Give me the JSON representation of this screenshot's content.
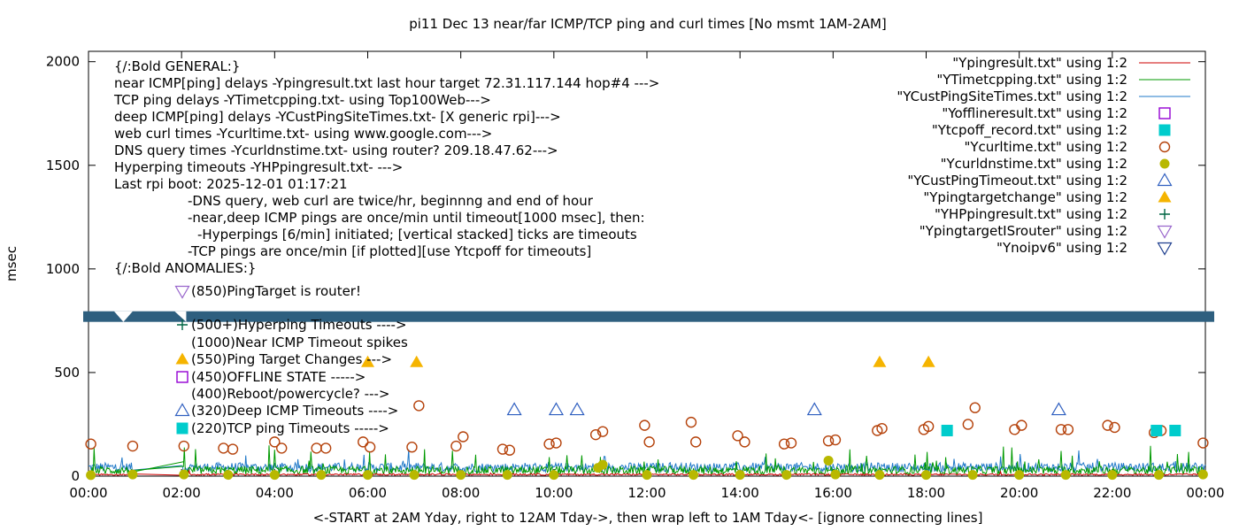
{
  "chart_data": {
    "type": "scatter",
    "title": "pi11 Dec 13  near/far ICMP/TCP ping and curl times [No msmt 1AM-2AM]",
    "xlabel": "<-START at 2AM Yday, right to 12AM Tday->, then wrap left to 1AM Tday<- [ignore connecting lines]",
    "ylabel": "msec",
    "xlim": [
      0,
      24
    ],
    "ylim": [
      0,
      2050
    ],
    "x_ticks": [
      "00:00",
      "02:00",
      "04:00",
      "06:00",
      "08:00",
      "10:00",
      "12:00",
      "14:00",
      "16:00",
      "18:00",
      "20:00",
      "22:00",
      "00:00"
    ],
    "y_ticks": [
      "0",
      "500",
      "1000",
      "1500",
      "2000"
    ],
    "y_tick_values": [
      0,
      500,
      1000,
      1500,
      2000
    ],
    "legend_position": "top-right",
    "legend": [
      {
        "label": "\"Ypingresult.txt\" using 1:2",
        "marker": "line",
        "color": "#cc0000"
      },
      {
        "label": "\"YTimetcpping.txt\" using 1:2",
        "marker": "line",
        "color": "#009900"
      },
      {
        "label": "\"YCustPingSiteTimes.txt\" using 1:2",
        "marker": "line",
        "color": "#1f78c8"
      },
      {
        "label": "\"Yofflineresult.txt\" using 1:2",
        "marker": "open-square",
        "color": "#9400d3"
      },
      {
        "label": "\"Ytcpoff_record.txt\" using 1:2",
        "marker": "filled-square",
        "color": "#00cccc"
      },
      {
        "label": "\"Ycurltime.txt\" using 1:2",
        "marker": "open-circle",
        "color": "#b5420b"
      },
      {
        "label": "\"Ycurldnstime.txt\" using 1:2",
        "marker": "filled-circle",
        "color": "#b8b800"
      },
      {
        "label": "\"YCustPingTimeout.txt\" using 1:2",
        "marker": "open-triangle",
        "color": "#2f5fc0"
      },
      {
        "label": "\"Ypingtargetchange\" using 1:2",
        "marker": "filled-triangle",
        "color": "#f5b400"
      },
      {
        "label": "\"YHPpingresult.txt\" using 1:2",
        "marker": "plus",
        "color": "#006644"
      },
      {
        "label": "\"YpingtargetISrouter\" using 1:2",
        "marker": "open-down-triangle",
        "color": "#9966cc"
      },
      {
        "label": "\"Ynoipv6\" using 1:2",
        "marker": "open-down-triangle",
        "color": "#1f3f8f"
      }
    ],
    "series": [
      {
        "name": "\"Ycurltime.txt\" using 1:2",
        "marker": "open-circle",
        "color": "#b5420b",
        "points": [
          [
            0.05,
            155
          ],
          [
            0.95,
            145
          ],
          [
            2.05,
            145
          ],
          [
            2.9,
            135
          ],
          [
            3.1,
            130
          ],
          [
            4.0,
            165
          ],
          [
            4.15,
            135
          ],
          [
            4.9,
            135
          ],
          [
            5.1,
            135
          ],
          [
            5.9,
            165
          ],
          [
            6.05,
            140
          ],
          [
            6.95,
            140
          ],
          [
            7.1,
            340
          ],
          [
            7.9,
            145
          ],
          [
            8.05,
            190
          ],
          [
            8.9,
            130
          ],
          [
            9.05,
            125
          ],
          [
            9.9,
            155
          ],
          [
            10.05,
            160
          ],
          [
            10.9,
            200
          ],
          [
            11.05,
            215
          ],
          [
            11.95,
            245
          ],
          [
            12.05,
            165
          ],
          [
            12.95,
            260
          ],
          [
            13.05,
            165
          ],
          [
            13.95,
            195
          ],
          [
            14.1,
            165
          ],
          [
            14.95,
            155
          ],
          [
            15.1,
            160
          ],
          [
            15.9,
            170
          ],
          [
            16.05,
            175
          ],
          [
            16.95,
            220
          ],
          [
            17.05,
            230
          ],
          [
            17.95,
            225
          ],
          [
            18.05,
            240
          ],
          [
            18.9,
            250
          ],
          [
            19.05,
            330
          ],
          [
            19.9,
            225
          ],
          [
            20.05,
            245
          ],
          [
            20.9,
            225
          ],
          [
            21.05,
            225
          ],
          [
            21.9,
            245
          ],
          [
            22.05,
            235
          ],
          [
            22.9,
            210
          ],
          [
            23.05,
            220
          ],
          [
            23.95,
            160
          ]
        ]
      },
      {
        "name": "\"Ycurldnstime.txt\" using 1:2",
        "marker": "filled-circle",
        "color": "#b8b800",
        "points": [
          [
            0.05,
            5
          ],
          [
            0.95,
            8
          ],
          [
            2.05,
            8
          ],
          [
            3.0,
            6
          ],
          [
            4.0,
            6
          ],
          [
            5.0,
            6
          ],
          [
            6.0,
            6
          ],
          [
            7.0,
            6
          ],
          [
            8.0,
            6
          ],
          [
            9.0,
            6
          ],
          [
            10.0,
            6
          ],
          [
            10.95,
            40
          ],
          [
            11.05,
            55
          ],
          [
            12.0,
            6
          ],
          [
            13.0,
            6
          ],
          [
            14.0,
            6
          ],
          [
            15.0,
            6
          ],
          [
            15.9,
            75
          ],
          [
            16.05,
            8
          ],
          [
            17.0,
            6
          ],
          [
            18.0,
            6
          ],
          [
            19.0,
            6
          ],
          [
            20.0,
            6
          ],
          [
            21.0,
            6
          ],
          [
            22.0,
            6
          ],
          [
            23.0,
            6
          ],
          [
            23.95,
            8
          ]
        ]
      },
      {
        "name": "\"YCustPingTimeout.txt\" using 1:2",
        "marker": "open-triangle",
        "color": "#2f5fc0",
        "points": [
          [
            9.15,
            320
          ],
          [
            10.05,
            320
          ],
          [
            10.5,
            320
          ],
          [
            15.6,
            320
          ],
          [
            20.85,
            320
          ]
        ]
      },
      {
        "name": "\"Ypingtargetchange\" using 1:2",
        "marker": "filled-triangle",
        "color": "#f5b400",
        "points": [
          [
            6.0,
            550
          ],
          [
            7.05,
            550
          ],
          [
            17.0,
            550
          ],
          [
            18.05,
            550
          ]
        ]
      },
      {
        "name": "\"Ytcpoff_record.txt\" using 1:2",
        "marker": "filled-square",
        "color": "#00cccc",
        "points": [
          [
            18.45,
            220
          ],
          [
            22.95,
            220
          ],
          [
            23.35,
            220
          ]
        ]
      }
    ],
    "annotations": [
      "{/:Bold GENERAL:}",
      "near ICMP[ping] delays -Ypingresult.txt last hour target 72.31.117.144 hop#4 --->",
      "TCP ping delays -YTimetcpping.txt- using Top100Web--->",
      "deep ICMP[ping] delays -YCustPingSiteTimes.txt- [X generic rpi]--->",
      "web curl times -Ycurltime.txt- using www.google.com--->",
      "DNS query times -Ycurldnstime.txt- using router? 209.18.47.62--->",
      "Hyperping timeouts -YHPpingresult.txt- --->",
      "Last rpi boot: 2025-12-01 01:17:21",
      "-DNS query, web curl are twice/hr, beginnng and end of hour",
      "-near,deep ICMP pings are once/min until timeout[1000 msec], then:",
      "-Hyperpings [6/min] initiated; [vertical stacked] ticks are timeouts",
      "-TCP pings are once/min [if plotted][use Ytcpoff for timeouts]",
      "{/:Bold ANOMALIES:}"
    ],
    "anomalies": [
      {
        "text": "(850)PingTarget is router!",
        "marker": "open-down-triangle",
        "color": "#9966cc"
      },
      {
        "text": "(500+)Hyperping Timeouts ---->",
        "marker": "plus",
        "color": "#006644"
      },
      {
        "text": "(1000)Near ICMP Timeout spikes",
        "marker": "none",
        "color": ""
      },
      {
        "text": "(550)Ping Target Changes --->",
        "marker": "filled-triangle",
        "color": "#f5b400"
      },
      {
        "text": "(450)OFFLINE STATE ----->",
        "marker": "open-square",
        "color": "#9400d3"
      },
      {
        "text": "(400)Reboot/powercycle? --->",
        "marker": "none",
        "color": ""
      },
      {
        "text": "(320)Deep ICMP Timeouts ---->",
        "marker": "open-triangle",
        "color": "#2f5fc0"
      },
      {
        "text": "(220)TCP ping Timeouts ----->",
        "marker": "filled-square",
        "color": "#00cccc"
      }
    ],
    "band": {
      "y": 770,
      "color": "#2e5f7f"
    }
  }
}
